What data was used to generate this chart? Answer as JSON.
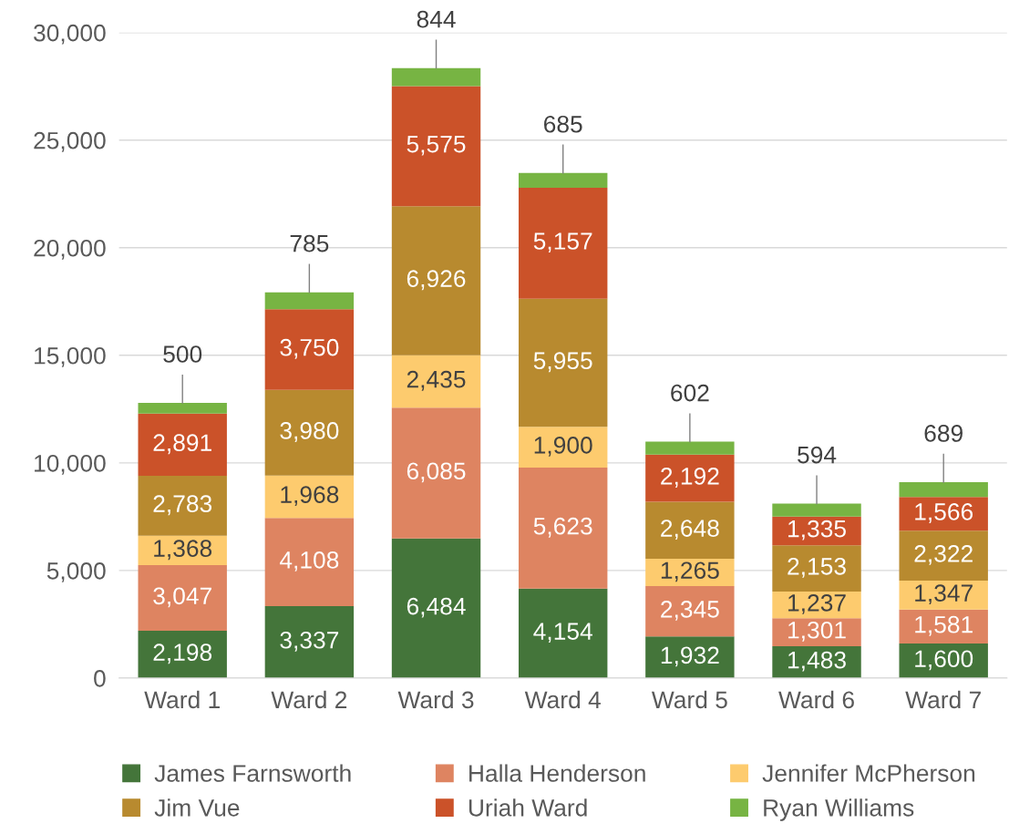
{
  "chart_data": {
    "type": "bar",
    "stacked": true,
    "grid": "y",
    "legend": "bottom",
    "categories": [
      "Ward 1",
      "Ward 2",
      "Ward 3",
      "Ward 4",
      "Ward 5",
      "Ward 6",
      "Ward 7"
    ],
    "series": [
      {
        "name": "James Farnsworth",
        "color": "#44753a",
        "values": [
          2198,
          3337,
          6484,
          4154,
          1932,
          1483,
          1600
        ],
        "value_labels": [
          "2,198",
          "3,337",
          "6,484",
          "4,154",
          "1,932",
          "1,483",
          "1,600"
        ]
      },
      {
        "name": "Halla Henderson",
        "color": "#de8461",
        "values": [
          3047,
          4108,
          6085,
          5623,
          2345,
          1301,
          1581
        ],
        "value_labels": [
          "3,047",
          "4,108",
          "6,085",
          "5,623",
          "2,345",
          "1,301",
          "1,581"
        ]
      },
      {
        "name": "Jennifer McPherson",
        "color": "#fdcb6e",
        "values": [
          1368,
          1968,
          2435,
          1900,
          1265,
          1237,
          1347
        ],
        "value_labels": [
          "1,368",
          "1,968",
          "2,435",
          "1,900",
          "1,265",
          "1,237",
          "1,347"
        ]
      },
      {
        "name": "Jim Vue",
        "color": "#b88a2f",
        "values": [
          2783,
          3980,
          6926,
          5955,
          2648,
          2153,
          2322
        ],
        "value_labels": [
          "2,783",
          "3,980",
          "6,926",
          "5,955",
          "2,648",
          "2,153",
          "2,322"
        ]
      },
      {
        "name": "Uriah Ward",
        "color": "#cb5229",
        "values": [
          2891,
          3750,
          5575,
          5157,
          2192,
          1335,
          1566
        ],
        "value_labels": [
          "2,891",
          "3,750",
          "5,575",
          "5,157",
          "2,192",
          "1,335",
          "1,566"
        ]
      },
      {
        "name": "Ryan Williams",
        "color": "#77b443",
        "values": [
          500,
          785,
          844,
          685,
          602,
          594,
          689
        ],
        "value_labels": [
          "500",
          "785",
          "844",
          "685",
          "602",
          "594",
          "689"
        ]
      }
    ],
    "ylim": [
      0,
      30000
    ],
    "yticks": [
      0,
      {
        "value": 5000,
        "label": "5,000"
      },
      {
        "value": 10000,
        "label": "10,000"
      },
      {
        "value": 15000,
        "label": "15,000"
      },
      {
        "value": 20000,
        "label": "20,000"
      },
      {
        "value": 25000,
        "label": "25,000"
      },
      {
        "value": 30000,
        "label": "30,000"
      }
    ]
  }
}
